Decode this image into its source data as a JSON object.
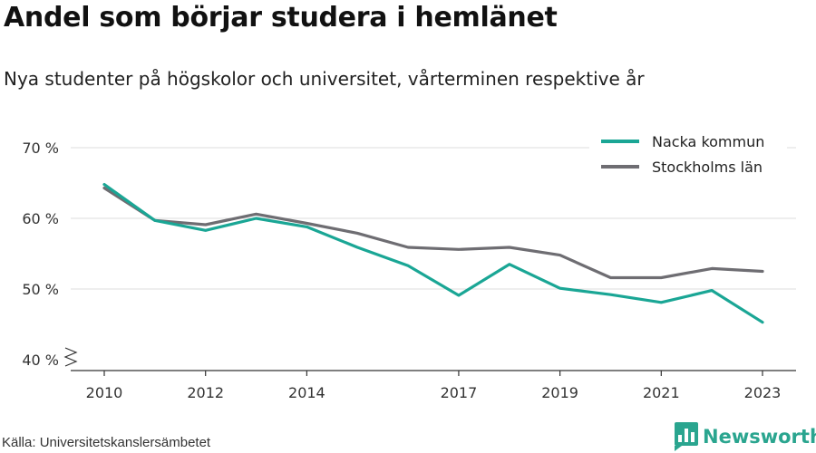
{
  "header": {
    "title": "Andel som börjar studera i hemlänet",
    "subtitle": "Nya studenter på högskolor och universitet, vårterminen respektive år"
  },
  "footer": {
    "source": "Källa: Universitetskanslersämbetet",
    "brand": "Newsworthy",
    "brand_icon": "bar-chart-logo-icon"
  },
  "chart_data": {
    "type": "line",
    "x": [
      2010,
      2011,
      2012,
      2013,
      2014,
      2015,
      2016,
      2017,
      2018,
      2019,
      2020,
      2021,
      2022,
      2023
    ],
    "x_tick_labels": [
      "2010",
      "2012",
      "2014",
      "2017",
      "2019",
      "2021",
      "2023"
    ],
    "y_ticks": [
      40,
      50,
      60,
      70
    ],
    "y_tick_suffix": " %",
    "ylim": [
      40,
      72
    ],
    "broken_axis": true,
    "grid": true,
    "legend_position": "top-right",
    "series": [
      {
        "name": "Nacka kommun",
        "color": "#1aa695",
        "values": [
          64.8,
          59.7,
          58.3,
          60.0,
          58.8,
          55.9,
          53.3,
          49.1,
          53.5,
          50.1,
          49.2,
          48.1,
          49.8,
          45.3
        ]
      },
      {
        "name": "Stockholms län",
        "color": "#6e6d72",
        "values": [
          64.3,
          59.7,
          59.1,
          60.6,
          59.3,
          57.9,
          55.9,
          55.6,
          55.9,
          54.8,
          51.6,
          51.6,
          52.9,
          52.5
        ]
      }
    ]
  }
}
